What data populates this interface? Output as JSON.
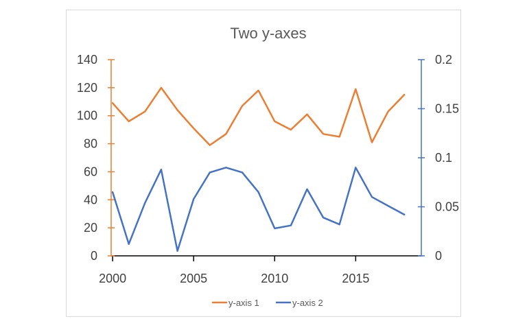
{
  "chart_data": {
    "type": "line",
    "title": "Two y-axes",
    "x": [
      2000,
      2001,
      2002,
      2003,
      2004,
      2005,
      2006,
      2007,
      2008,
      2009,
      2010,
      2011,
      2012,
      2013,
      2014,
      2015,
      2016,
      2017,
      2018
    ],
    "x_ticks": [
      2000,
      2005,
      2010,
      2015
    ],
    "x_tick_labels": [
      "2000",
      "2005",
      "2010",
      "2015"
    ],
    "series": [
      {
        "name": "y-axis 1",
        "axis": "left",
        "color": "#ED7D31",
        "values": [
          109,
          96,
          103,
          120,
          104,
          91,
          79,
          87,
          107,
          118,
          96,
          90,
          101,
          87,
          85,
          119,
          81,
          103,
          115
        ]
      },
      {
        "name": "y-axis 2",
        "axis": "right",
        "color": "#4472C4",
        "values": [
          0.065,
          0.012,
          0.054,
          0.088,
          0.005,
          0.058,
          0.085,
          0.09,
          0.085,
          0.065,
          0.028,
          0.031,
          0.068,
          0.039,
          0.032,
          0.09,
          0.06,
          0.051,
          0.042
        ]
      }
    ],
    "y_left": {
      "range": [
        0,
        140
      ],
      "ticks": [
        0,
        20,
        40,
        60,
        80,
        100,
        120,
        140
      ],
      "tick_labels": [
        "0",
        "20",
        "40",
        "60",
        "80",
        "100",
        "120",
        "140"
      ],
      "color": "#ED7D31"
    },
    "y_right": {
      "range": [
        0,
        0.2
      ],
      "ticks": [
        0,
        0.05,
        0.1,
        0.15,
        0.2
      ],
      "tick_labels": [
        "0",
        "0.05",
        "0.1",
        "0.15",
        "0.2"
      ],
      "color": "#4472C4"
    },
    "grid": false,
    "legend": {
      "position": "bottom",
      "entries": [
        "y-axis 1",
        "y-axis 2"
      ]
    }
  }
}
